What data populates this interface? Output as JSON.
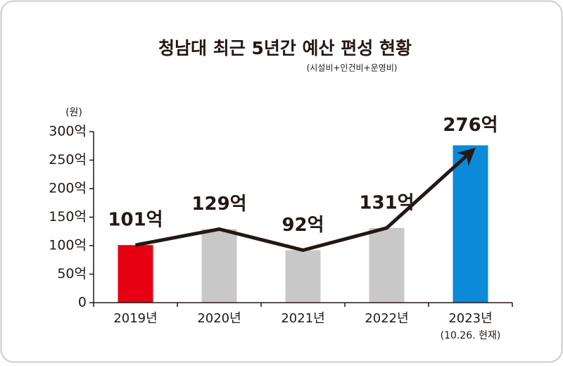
{
  "chart_data": {
    "type": "bar",
    "title": "청남대 최근 5년간 예산 편성 현황",
    "subtitle": "(시설비+인건비+운영비)",
    "y_unit_label": "(원)",
    "categories": [
      "2019년",
      "2020년",
      "2021년",
      "2022년",
      "2023년"
    ],
    "annotation": "(10.26. 현재)",
    "values": [
      101,
      129,
      92,
      131,
      276
    ],
    "value_labels": [
      "101억",
      "129억",
      "92억",
      "131억",
      "276억"
    ],
    "colors": [
      "#e60012",
      "#c8c8c8",
      "#c8c8c8",
      "#c8c8c8",
      "#0a8ad8"
    ],
    "trend_line_color": "#231815",
    "ylim": [
      0,
      300
    ],
    "yticks": [
      0,
      {
        "value": 50,
        "label": "50억"
      },
      {
        "value": 100,
        "label": "100억"
      },
      {
        "value": 150,
        "label": "150억"
      },
      {
        "value": 200,
        "label": "200억"
      },
      {
        "value": 250,
        "label": "250억"
      },
      {
        "value": 300,
        "label": "300억"
      }
    ]
  }
}
